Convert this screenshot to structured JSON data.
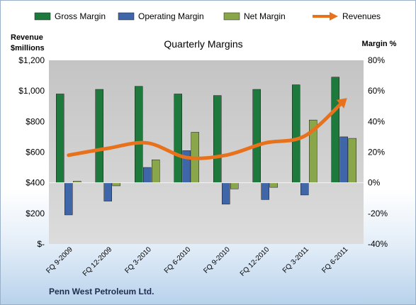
{
  "chart_data": {
    "type": "bar",
    "title": "Quarterly Margins",
    "company": "Penn West Petroleum Ltd.",
    "y_left_title": [
      "Revenue",
      "$millions"
    ],
    "y_right_title": "Margin %",
    "y_left_ticks": [
      "$1,200",
      "$1,000",
      "$800",
      "$600",
      "$400",
      "$200",
      "$-"
    ],
    "y_right_ticks": [
      "80%",
      "60%",
      "40%",
      "20%",
      "0%",
      "-20%",
      "-40%"
    ],
    "y_left_range": [
      0,
      1200
    ],
    "y_right_range": [
      -40,
      80
    ],
    "categories": [
      "FQ 9-2009",
      "FQ 12-2009",
      "FQ 3-2010",
      "FQ 6-2010",
      "FQ 9-2010",
      "FQ 12-2010",
      "FQ 3-2011",
      "FQ 6-2011"
    ],
    "series": [
      {
        "name": "Gross Margin",
        "axis": "right",
        "kind": "bar",
        "color": "#1e7a3c",
        "values": [
          58,
          61,
          63,
          58,
          57,
          61,
          64,
          69
        ]
      },
      {
        "name": "Operating Margin",
        "axis": "right",
        "kind": "bar",
        "color": "#3f66a8",
        "values": [
          -21,
          -12,
          10,
          21,
          -14,
          -11,
          -8,
          30
        ]
      },
      {
        "name": "Net Margin",
        "axis": "right",
        "kind": "bar",
        "color": "#8aa64a",
        "values": [
          1,
          -2,
          15,
          33,
          -4,
          -3,
          41,
          29
        ]
      },
      {
        "name": "Revenues",
        "axis": "left",
        "kind": "line",
        "color": "#e8721c",
        "values": [
          580,
          625,
          660,
          565,
          580,
          660,
          705,
          935
        ]
      }
    ],
    "legend_position": "top",
    "grid": false
  }
}
